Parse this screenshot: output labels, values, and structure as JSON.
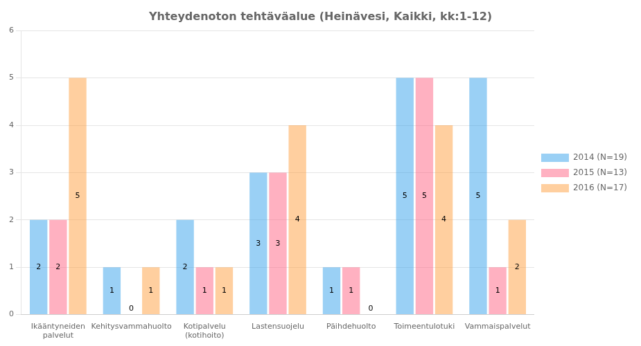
{
  "chart_data": {
    "type": "bar",
    "title": "Yhteydenoton tehtäväalue (Heinävesi, Kaikki, kk:1-12)",
    "categories": [
      "Ikääntyneiden\npalvelut",
      "Kehitysvammahuolto",
      "Kotipalvelu\n(kotihoito)",
      "Lastensuojelu",
      "Päihdehuolto",
      "Toimeentulotuki",
      "Vammaispalvelut"
    ],
    "series": [
      {
        "name": "2014 (N=19)",
        "values": [
          2,
          1,
          2,
          3,
          1,
          5,
          5
        ]
      },
      {
        "name": "2015 (N=13)",
        "values": [
          2,
          0,
          1,
          3,
          1,
          5,
          1
        ]
      },
      {
        "name": "2016 (N=17)",
        "values": [
          5,
          1,
          1,
          4,
          0,
          4,
          2
        ]
      }
    ],
    "ylim": [
      0,
      6
    ],
    "yticks": [
      0,
      1,
      2,
      3,
      4,
      5,
      6
    ],
    "grid": true,
    "legend": "right",
    "data_labels": true
  }
}
